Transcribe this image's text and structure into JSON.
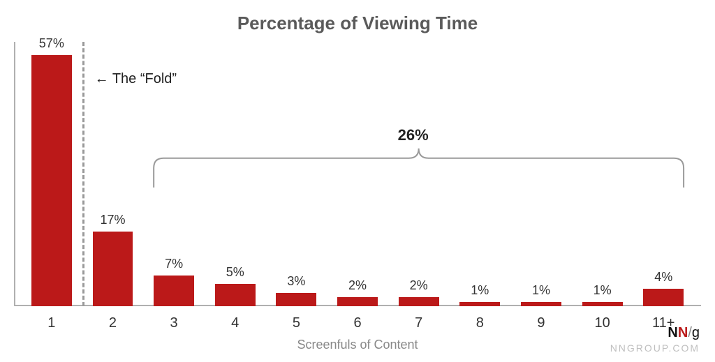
{
  "chart": {
    "type": "bar",
    "title": "Percentage of Viewing Time",
    "title_fontsize": 26,
    "title_color": "#5a5a5a",
    "xlabel": "Screenfuls of Content",
    "xlabel_fontsize": 18,
    "xlabel_color": "#888888",
    "categories": [
      "1",
      "2",
      "3",
      "4",
      "5",
      "6",
      "7",
      "8",
      "9",
      "10",
      "11+"
    ],
    "values": [
      57,
      17,
      7,
      5,
      3,
      2,
      2,
      1,
      1,
      1,
      4
    ],
    "value_suffix": "%",
    "ymax": 60,
    "bar_color": "#bb1919",
    "value_label_color": "#333333",
    "value_label_fontsize": 18,
    "tick_label_color": "#333333",
    "tick_label_fontsize": 20,
    "axis_color": "#b0b0b0",
    "background_color": "#ffffff",
    "bar_width_pct": 66
  },
  "fold": {
    "label": "← The “Fold”",
    "after_category_index": 0,
    "line_color": "#9a9a9a",
    "line_width": 3,
    "dash": "8,8",
    "label_fontsize": 20
  },
  "bracket": {
    "label": "26%",
    "from_category_index": 2,
    "to_category_index": 10,
    "color": "#9a9a9a",
    "stroke_width": 2,
    "label_fontsize": 22
  },
  "attribution": {
    "site": "NNGROUP.COM",
    "logo": {
      "n1": "N",
      "n2": "N",
      "slash": "/",
      "g": "g"
    }
  }
}
